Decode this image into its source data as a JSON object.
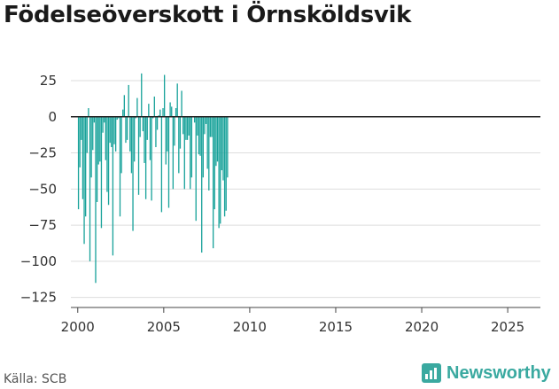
{
  "header": {
    "title": "Födelseöverskott i Örnsköldsvik"
  },
  "footer": {
    "source": "Källa: SCB",
    "brand": "Newsworthy"
  },
  "colors": {
    "bar": "#1aa39b",
    "zero_line": "#222222",
    "grid": "#dddddd",
    "text": "#333333"
  },
  "chart_data": {
    "type": "bar",
    "title": "Födelseöverskott i Örnsköldsvik",
    "xlabel": "",
    "ylabel": "",
    "xlim": [
      1999.6,
      2026.9
    ],
    "ylim": [
      -132,
      33
    ],
    "yticks": [
      25,
      0,
      -25,
      -50,
      -75,
      -100,
      -125
    ],
    "xticks": [
      2000,
      2005,
      2010,
      2015,
      2020,
      2025
    ],
    "grid": true,
    "frequency": "monthly",
    "start": "2000-01",
    "values": [
      -64,
      -35,
      -16,
      -57,
      -88,
      -69,
      -25,
      6,
      -100,
      -42,
      -23,
      -4,
      -115,
      -59,
      -33,
      -31,
      -77,
      -11,
      -4,
      -30,
      -52,
      -61,
      -18,
      -21,
      -96,
      -19,
      -24,
      -2,
      -1,
      -69,
      -39,
      5,
      15,
      -18,
      -16,
      22,
      -24,
      -39,
      -79,
      -31,
      -1,
      13,
      -54,
      -14,
      30,
      -10,
      -32,
      -57,
      -16,
      9,
      -30,
      -58,
      -1,
      14,
      -21,
      -9,
      1,
      5,
      -66,
      6,
      29,
      -33,
      -24,
      -63,
      10,
      7,
      -50,
      -20,
      6,
      23,
      -39,
      -22,
      18,
      -12,
      -50,
      -16,
      -16,
      -13,
      -50,
      -42,
      0,
      -4,
      -72,
      -13,
      -26,
      -27,
      -94,
      -42,
      -12,
      -5,
      -36,
      -51,
      -14,
      -14,
      -91,
      -64,
      -34,
      -31,
      -77,
      -74,
      -37,
      -44,
      -69,
      -65,
      -42
    ]
  }
}
